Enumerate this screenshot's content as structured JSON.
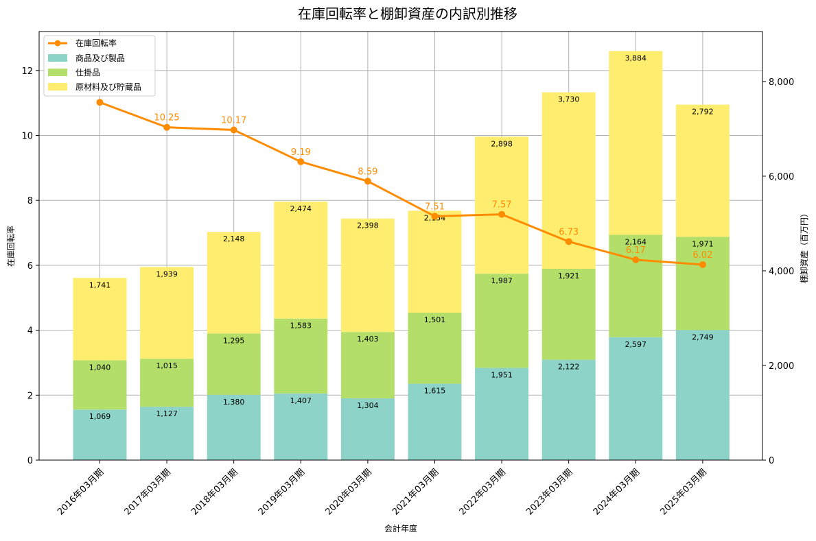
{
  "chart_data": {
    "type": "bar",
    "title": "在庫回転率と棚卸資産の内訳別推移",
    "xlabel": "会計年度",
    "ylabel_left": "在庫回転率",
    "ylabel_right": "棚卸資産（百万円）",
    "categories": [
      "2016年03月期",
      "2017年03月期",
      "2018年03月期",
      "2019年03月期",
      "2020年03月期",
      "2021年03月期",
      "2022年03月期",
      "2023年03月期",
      "2024年03月期",
      "2025年03月期"
    ],
    "left_ticks": [
      "0",
      "2",
      "4",
      "6",
      "8",
      "10",
      "12"
    ],
    "right_ticks": [
      "0",
      "2,000",
      "4,000",
      "6,000",
      "8,000"
    ],
    "ylim_left": [
      0,
      13.2
    ],
    "ylim_right": [
      0,
      9057
    ],
    "grid": true,
    "legend_position": "top-left",
    "stacked_series": [
      {
        "name": "商品及び製品",
        "color": "#8dd3c7",
        "values": [
          1069,
          1127,
          1380,
          1407,
          1304,
          1615,
          1951,
          2122,
          2597,
          2749
        ],
        "labels": [
          "1,069",
          "1,127",
          "1,380",
          "1,407",
          "1,304",
          "1,615",
          "1,951",
          "2,122",
          "2,597",
          "2,749"
        ]
      },
      {
        "name": "仕掛品",
        "color": "#b3de69",
        "values": [
          1040,
          1015,
          1295,
          1583,
          1403,
          1501,
          1987,
          1921,
          2164,
          1971
        ],
        "labels": [
          "1,040",
          "1,015",
          "1,295",
          "1,583",
          "1,403",
          "1,501",
          "1,987",
          "1,921",
          "2,164",
          "1,971"
        ]
      },
      {
        "name": "原材料及び貯蔵品",
        "color": "#ffed6f",
        "values": [
          1741,
          1939,
          2148,
          2474,
          2398,
          2154,
          2898,
          3730,
          3884,
          2792
        ],
        "labels": [
          "1,741",
          "1,939",
          "2,148",
          "2,474",
          "2,398",
          "2,154",
          "2,898",
          "3,730",
          "3,884",
          "2,792"
        ]
      }
    ],
    "line_series": {
      "name": "在庫回転率",
      "color": "#ff8c00",
      "values": [
        11.02,
        10.25,
        10.17,
        9.19,
        8.59,
        7.51,
        7.57,
        6.73,
        6.17,
        6.02
      ],
      "labels": [
        "",
        "10.25",
        "10.17",
        "9.19",
        "8.59",
        "7.51",
        "7.57",
        "6.73",
        "6.17",
        "6.02"
      ]
    }
  }
}
